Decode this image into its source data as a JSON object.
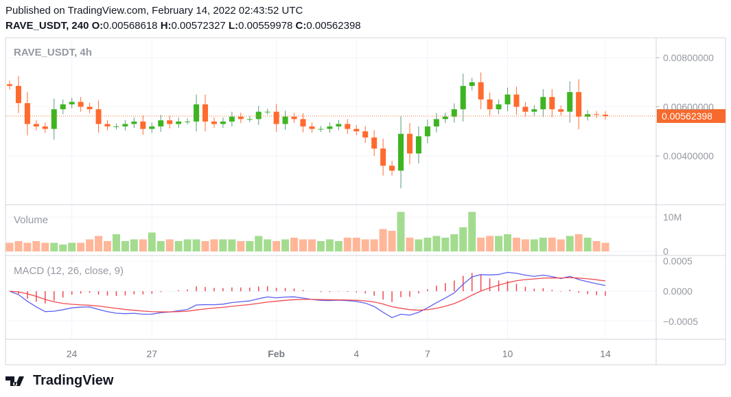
{
  "header": {
    "published": "Published on TradingView.com, February 14, 2022 02:43:52 UTC",
    "symbol": "RAVE_USDT, 240",
    "o_label": "O:",
    "o": "0.00568618",
    "h_label": "H:",
    "h": "0.00572327",
    "l_label": "L:",
    "l": "0.00559978",
    "c_label": "C:",
    "c": "0.00562398"
  },
  "logo": {
    "text": "TradingView"
  },
  "colors": {
    "up": "#3cb521",
    "down": "#ff6a2e",
    "up_vol": "#a3dc8f",
    "down_vol": "#ffb699",
    "macd": "#5b5ff0",
    "signal": "#f0484e",
    "last": "#f7692c"
  },
  "chart_data": {
    "type": "candlestick",
    "title": "RAVE_USDT, 4h",
    "price_ticks": [
      "0.00800000",
      "0.00600000",
      "0.00400000"
    ],
    "price_tick_values": [
      0.008,
      0.006,
      0.004
    ],
    "price_range": [
      0.0022,
      0.0087
    ],
    "last_price": "0.00562398",
    "last_price_value": 0.00562398,
    "x_labels": [
      {
        "label": "24",
        "index": 7
      },
      {
        "label": "27",
        "index": 16
      },
      {
        "label": "Feb",
        "index": 30
      },
      {
        "label": "4",
        "index": 39
      },
      {
        "label": "7",
        "index": 47
      },
      {
        "label": "10",
        "index": 56
      },
      {
        "label": "14",
        "index": 67
      }
    ],
    "closes": [
      0.00685,
      0.00615,
      0.0053,
      0.0052,
      0.0051,
      0.0059,
      0.0061,
      0.0062,
      0.006,
      0.0059,
      0.0053,
      0.0052,
      0.0052,
      0.0053,
      0.0054,
      0.0051,
      0.0052,
      0.00545,
      0.0053,
      0.0054,
      0.0054,
      0.0061,
      0.0054,
      0.0053,
      0.0054,
      0.0056,
      0.0055,
      0.0055,
      0.0058,
      0.0058,
      0.0053,
      0.0056,
      0.0055,
      0.0052,
      0.0051,
      0.0051,
      0.0052,
      0.0053,
      0.0051,
      0.005,
      0.00475,
      0.0043,
      0.0036,
      0.0034,
      0.0049,
      0.0041,
      0.0048,
      0.0052,
      0.0055,
      0.0056,
      0.0059,
      0.00685,
      0.007,
      0.0063,
      0.0059,
      0.0061,
      0.0065,
      0.006,
      0.0058,
      0.0059,
      0.0064,
      0.0059,
      0.0058,
      0.0066,
      0.0056,
      0.0057,
      0.00568,
      0.00562
    ],
    "volume_label": "Volume",
    "volume_ticks": [
      "10M",
      "0"
    ],
    "volumes_m": [
      2.5,
      3,
      2.5,
      3,
      2.5,
      2.5,
      2,
      2.5,
      2.5,
      3.5,
      4.5,
      3,
      5,
      3,
      3.5,
      3.5,
      5.5,
      3,
      3.5,
      3,
      3.5,
      3.5,
      3,
      3.5,
      3.5,
      3.5,
      3,
      3,
      4.5,
      3.5,
      3,
      3.5,
      4,
      3.5,
      3.5,
      3,
      3.5,
      3,
      4,
      4,
      3.5,
      3.5,
      6.5,
      6,
      11.5,
      4,
      3.5,
      4,
      4.5,
      4,
      5,
      7,
      11.5,
      4,
      4.5,
      4.5,
      5,
      4,
      3.5,
      3.5,
      4,
      4,
      3.5,
      4.5,
      5,
      4,
      3,
      2.5
    ],
    "macd_label": "MACD (12, 26, close, 9)",
    "macd_params": {
      "fast": 12,
      "slow": 26,
      "signal": 9
    },
    "macd_ticks": [
      "0.0005",
      "0.0000",
      "−0.0005"
    ],
    "macd_tick_values": [
      0.0005,
      0,
      -0.0005
    ]
  }
}
